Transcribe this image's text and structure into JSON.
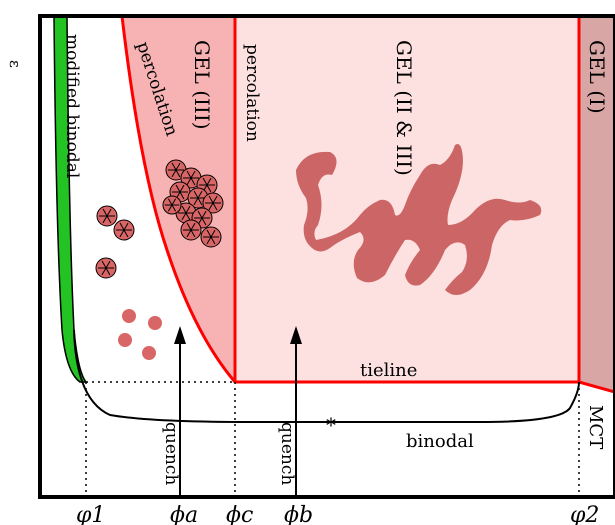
{
  "axis": {
    "y_label": "ε",
    "ticks": {
      "phi1": "φ1",
      "phi_a": "ϕa",
      "phi_c": "ϕc",
      "phi_b": "ϕb",
      "phi2": "φ2"
    }
  },
  "regions": {
    "modified_binodal": "modified binodal",
    "percolation_left": "percolation",
    "percolation_right": "percolation",
    "gel_iii": "GEL (III)",
    "gel_ii_iii": "GEL (II & III)",
    "gel_i": "GEL (I)"
  },
  "annotations": {
    "tieline": "tieline",
    "binodal": "binodal",
    "mct": "MCT",
    "quench_a": "quench",
    "quench_b": "quench",
    "critical_point_marker": "*"
  },
  "colors": {
    "green_band": "#22c322",
    "gel_iii_fill": "#f7b3b3",
    "gel_ii_iii_fill": "#fde0e0",
    "gel_i_fill": "#d9a6a6",
    "boundary_red": "#ff0000",
    "cluster_fill": "#d96666",
    "aggregate_fill": "#cc6666"
  },
  "icons": [
    "cluster-icon",
    "droplet-icon",
    "arrow-up-icon",
    "asterisk-icon"
  ]
}
